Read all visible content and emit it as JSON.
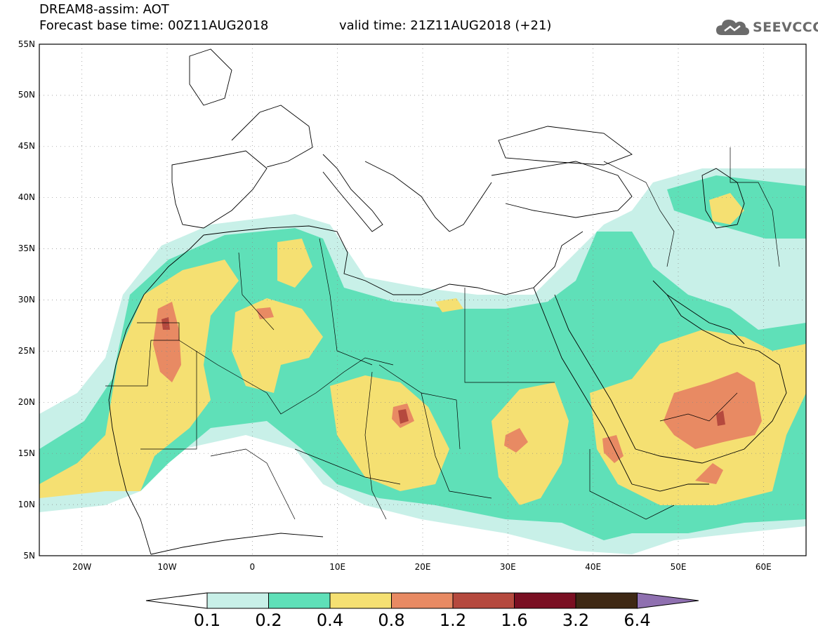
{
  "title": {
    "model": "DREAM8-assim: AOT",
    "base_time": "Forecast base time: 00Z11AUG2018",
    "valid_time": "valid time: 21Z11AUG2018 (+21)"
  },
  "logo": {
    "icon": "cloud-icon",
    "text": "SEEVCCC",
    "color": "#6b6b6b"
  },
  "map": {
    "lon_range": [
      -25,
      65
    ],
    "lat_range": [
      5,
      55
    ],
    "lat_labels": [
      "5N",
      "10N",
      "15N",
      "20N",
      "25N",
      "30N",
      "35N",
      "40N",
      "45N",
      "50N",
      "55N"
    ],
    "lon_labels": [
      "20W",
      "10W",
      "0",
      "10E",
      "20E",
      "30E",
      "40E",
      "50E",
      "60E"
    ],
    "grid": "dotted"
  },
  "colorbar": {
    "labels": [
      "0.1",
      "0.2",
      "0.4",
      "0.8",
      "1.2",
      "1.6",
      "3.2",
      "6.4"
    ],
    "colors": [
      "#c8f0e8",
      "#5fe0b8",
      "#f5e072",
      "#e88a63",
      "#b5493e",
      "#7a0f22",
      "#3e2814",
      "#8f70b0"
    ],
    "under_color": "#ffffff",
    "over_color": "#8f70b0"
  }
}
